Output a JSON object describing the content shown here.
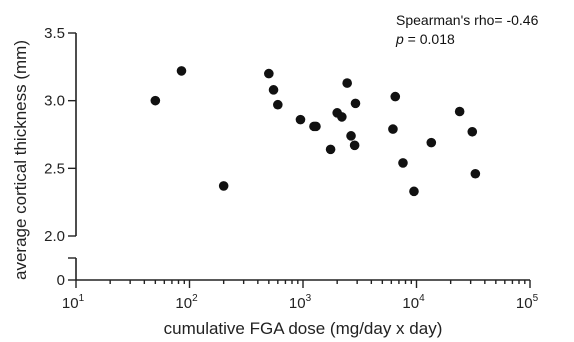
{
  "chart_data": {
    "type": "scatter",
    "xlabel": "cumulative FGA dose (mg/day x day)",
    "ylabel": "average cortical thickness (mm)",
    "x_scale": "log",
    "x_ticks": [
      {
        "value": 10,
        "base": "10",
        "exp": "1"
      },
      {
        "value": 100,
        "base": "10",
        "exp": "2"
      },
      {
        "value": 1000,
        "base": "10",
        "exp": "3"
      },
      {
        "value": 10000,
        "base": "10",
        "exp": "4"
      },
      {
        "value": 100000,
        "base": "10",
        "exp": "5"
      }
    ],
    "xlim": [
      10,
      100000
    ],
    "y_ticks_upper": [
      "2.0",
      "2.5",
      "3.0",
      "3.5"
    ],
    "y_ticks_lower": [
      "0"
    ],
    "ylim_upper": [
      2.0,
      3.5
    ],
    "y_axis_break": true,
    "annotation": {
      "line1": "Spearman's rho= -0.46",
      "p_symbol": "p",
      "p_rest": " = 0.018"
    },
    "points": [
      {
        "x": 50,
        "y": 3.0
      },
      {
        "x": 85,
        "y": 3.22
      },
      {
        "x": 200,
        "y": 2.37
      },
      {
        "x": 500,
        "y": 3.2
      },
      {
        "x": 550,
        "y": 3.08
      },
      {
        "x": 600,
        "y": 2.97
      },
      {
        "x": 950,
        "y": 2.86
      },
      {
        "x": 1250,
        "y": 2.81
      },
      {
        "x": 1300,
        "y": 2.81
      },
      {
        "x": 1750,
        "y": 2.64
      },
      {
        "x": 2000,
        "y": 2.91
      },
      {
        "x": 2200,
        "y": 2.88
      },
      {
        "x": 2450,
        "y": 3.13
      },
      {
        "x": 2650,
        "y": 2.74
      },
      {
        "x": 2900,
        "y": 2.98
      },
      {
        "x": 2850,
        "y": 2.67
      },
      {
        "x": 6200,
        "y": 2.79
      },
      {
        "x": 6500,
        "y": 3.03
      },
      {
        "x": 7600,
        "y": 2.54
      },
      {
        "x": 9500,
        "y": 2.33
      },
      {
        "x": 13500,
        "y": 2.69
      },
      {
        "x": 24000,
        "y": 2.92
      },
      {
        "x": 31000,
        "y": 2.77
      },
      {
        "x": 33000,
        "y": 2.46
      }
    ]
  }
}
